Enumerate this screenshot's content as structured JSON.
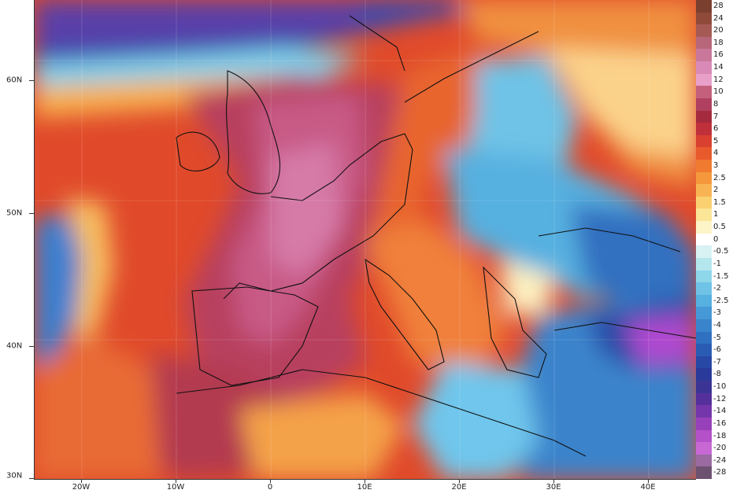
{
  "map": {
    "lat_labels": [
      "60N",
      "50N",
      "40N",
      "30N"
    ],
    "lon_labels": [
      "20W",
      "10W",
      "0",
      "10E",
      "20E",
      "30E",
      "40E"
    ],
    "extent": {
      "lon_min": -25,
      "lon_max": 45,
      "lat_min": 30,
      "lat_max": 66
    },
    "lat_ticks": [
      60,
      50,
      40,
      30
    ],
    "lon_ticks": [
      -20,
      -10,
      0,
      10,
      20,
      30,
      40
    ]
  },
  "legend": {
    "labels": [
      "28",
      "24",
      "20",
      "18",
      "16",
      "14",
      "12",
      "10",
      "8",
      "7",
      "6",
      "5",
      "4",
      "3",
      "2.5",
      "2",
      "1.5",
      "1",
      "0.5",
      "0",
      "-0.5",
      "-1",
      "-1.5",
      "-2",
      "-2.5",
      "-3",
      "-4",
      "-5",
      "-6",
      "-7",
      "-8",
      "-10",
      "-12",
      "-14",
      "-16",
      "-18",
      "-20",
      "-24",
      "-28"
    ],
    "colors": [
      "#7b3f2f",
      "#8f4a3a",
      "#a55a55",
      "#b8667a",
      "#c9789b",
      "#d98ab6",
      "#e8a0c8",
      "#c4607c",
      "#b04060",
      "#a52a3d",
      "#c0303a",
      "#d94030",
      "#e85a2c",
      "#f07a30",
      "#f5983c",
      "#f8b452",
      "#fad070",
      "#fbe596",
      "#fdf4c8",
      "#ffffff",
      "#d8f2f4",
      "#b4e6ee",
      "#8ed6ea",
      "#6ec3e6",
      "#56b0e0",
      "#4599d6",
      "#3a84cc",
      "#3070c0",
      "#2a5cb4",
      "#2848a6",
      "#2a3a9a",
      "#3c3494",
      "#55309c",
      "#7436aa",
      "#9840ba",
      "#b450c8",
      "#c868d4",
      "#9a6aa0",
      "#6c5270"
    ]
  },
  "colors": {
    "atlantic_warm": "#e04a2a",
    "core_warm": "#b8405e",
    "hot_core": "#d67aa8",
    "cold_east": "#3a7fcf",
    "very_cold": "#b04ad0",
    "north_cold": "#3848b0"
  }
}
